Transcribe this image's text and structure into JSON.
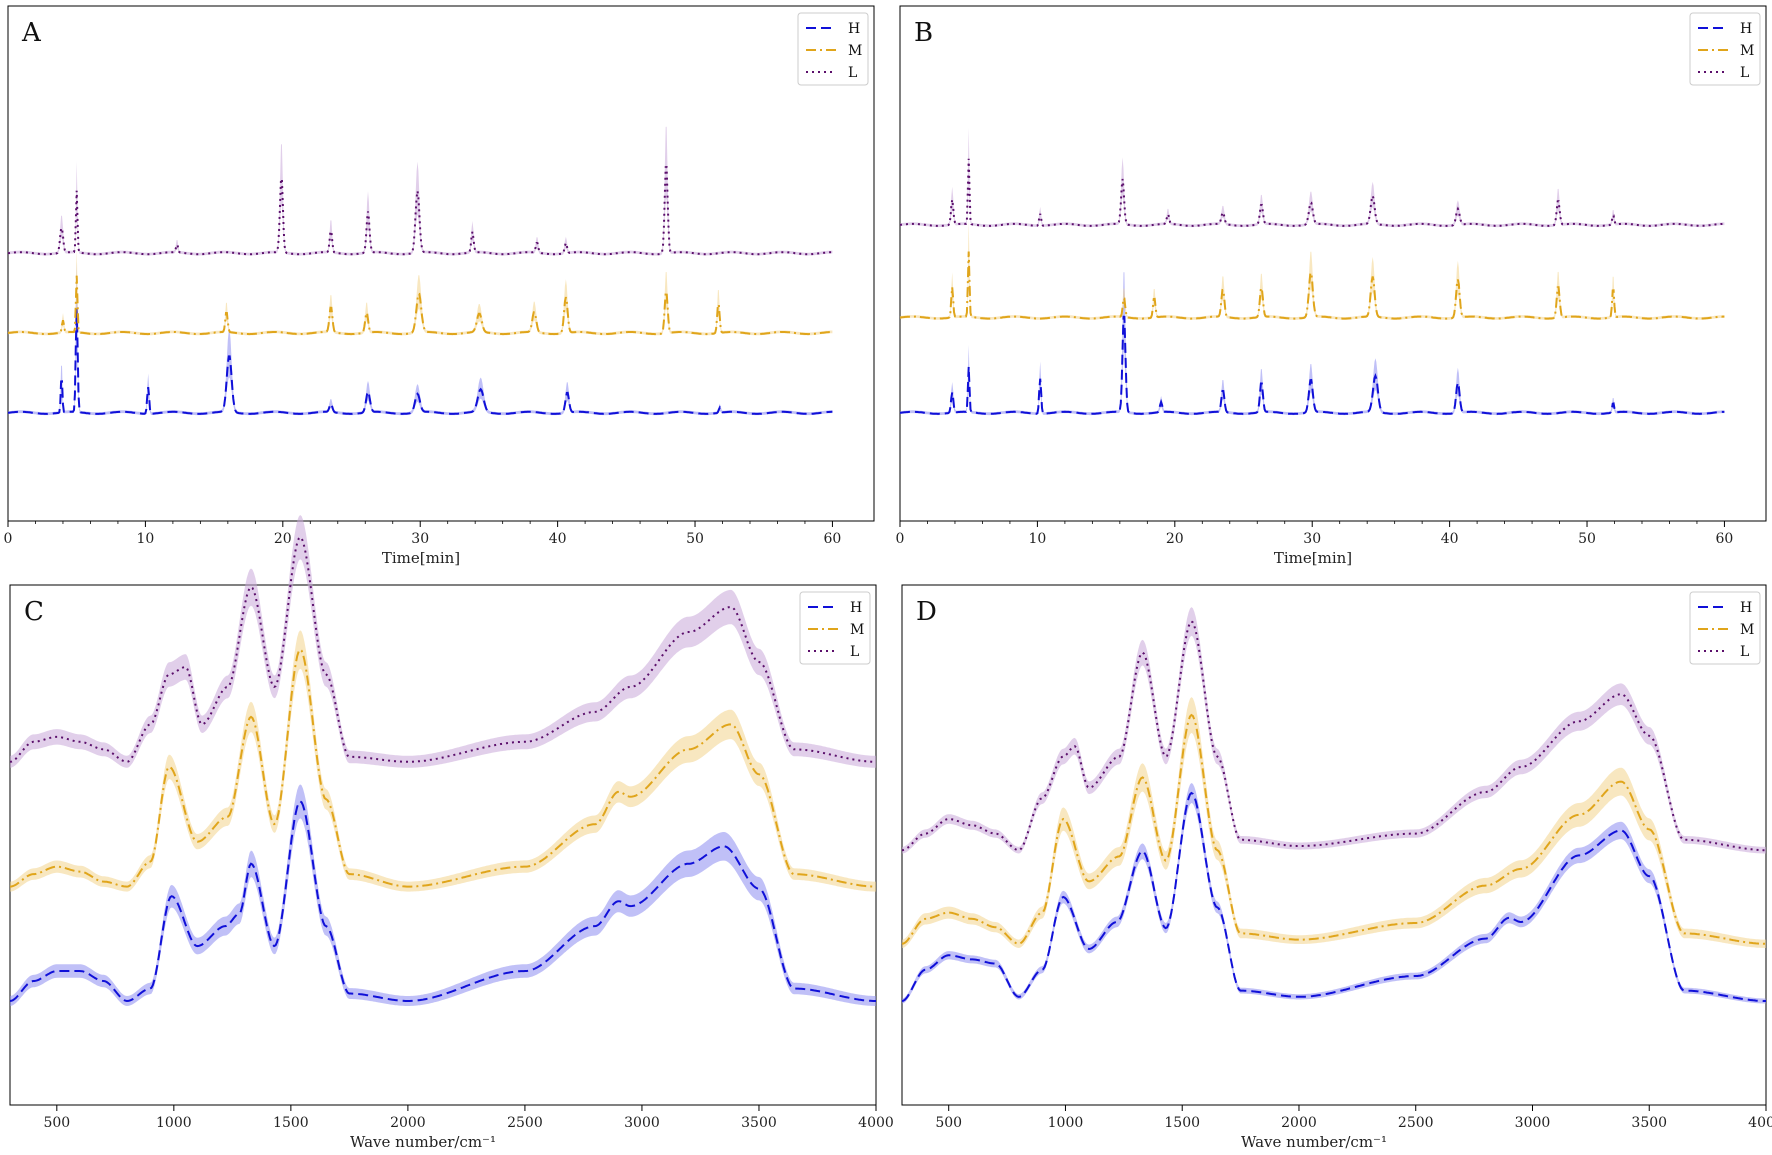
{
  "chart_data": [
    {
      "panel": "A",
      "type": "line",
      "xlabel": "Time[min]",
      "ylabel": "",
      "xlim": [
        0,
        60
      ],
      "xticks": [
        "0",
        "10",
        "20",
        "30",
        "40",
        "50",
        "60"
      ],
      "yticks": [],
      "legend": {
        "placement": "top-right",
        "entries": [
          "H",
          "M",
          "L"
        ]
      },
      "kind": "chrom",
      "series": [
        {
          "name": "H",
          "color": "#1010d8",
          "fill": "#8c8cf0",
          "dash": "dashed",
          "peaks": [
            [
              3.9,
              0.36,
              0.08
            ],
            [
              5.0,
              1.0,
              0.1
            ],
            [
              10.2,
              0.26,
              0.1
            ],
            [
              16.1,
              0.55,
              0.25
            ],
            [
              23.5,
              0.08,
              0.15
            ],
            [
              26.2,
              0.2,
              0.2
            ],
            [
              29.8,
              0.18,
              0.25
            ],
            [
              34.4,
              0.22,
              0.3
            ],
            [
              40.7,
              0.2,
              0.18
            ],
            [
              51.8,
              0.05,
              0.1
            ]
          ]
        },
        {
          "name": "M",
          "color": "#e0a51b",
          "fill": "#f2d48c",
          "dash": "dashdot",
          "peaks": [
            [
              4.0,
              0.12,
              0.1
            ],
            [
              5.0,
              0.55,
              0.08
            ],
            [
              15.9,
              0.2,
              0.12
            ],
            [
              23.5,
              0.25,
              0.15
            ],
            [
              26.1,
              0.2,
              0.15
            ],
            [
              29.9,
              0.38,
              0.25
            ],
            [
              34.3,
              0.18,
              0.25
            ],
            [
              38.3,
              0.2,
              0.2
            ],
            [
              40.6,
              0.35,
              0.18
            ],
            [
              47.9,
              0.42,
              0.15
            ],
            [
              51.7,
              0.3,
              0.12
            ]
          ]
        },
        {
          "name": "L",
          "color": "#5b0f6b",
          "fill": "#c8a8d8",
          "dash": "dotted",
          "peaks": [
            [
              3.9,
              0.25,
              0.15
            ],
            [
              5.0,
              0.6,
              0.08
            ],
            [
              12.3,
              0.08,
              0.1
            ],
            [
              19.9,
              0.75,
              0.15
            ],
            [
              23.5,
              0.22,
              0.12
            ],
            [
              26.2,
              0.4,
              0.15
            ],
            [
              29.8,
              0.6,
              0.2
            ],
            [
              33.8,
              0.2,
              0.12
            ],
            [
              38.5,
              0.1,
              0.12
            ],
            [
              40.6,
              0.1,
              0.12
            ],
            [
              47.9,
              0.88,
              0.15
            ]
          ]
        }
      ]
    },
    {
      "panel": "B",
      "type": "line",
      "xlabel": "Time[min]",
      "ylabel": "",
      "xlim": [
        0,
        60
      ],
      "xticks": [
        "0",
        "10",
        "20",
        "30",
        "40",
        "50",
        "60"
      ],
      "yticks": [],
      "legend": {
        "placement": "top-right",
        "entries": [
          "H",
          "M",
          "L"
        ]
      },
      "kind": "chrom",
      "series": [
        {
          "name": "H",
          "color": "#1010d8",
          "fill": "#8c8cf0",
          "dash": "dashed",
          "peaks": [
            [
              3.8,
              0.2,
              0.12
            ],
            [
              5.0,
              0.45,
              0.08
            ],
            [
              10.2,
              0.35,
              0.1
            ],
            [
              16.3,
              1.0,
              0.15
            ],
            [
              19.0,
              0.1,
              0.12
            ],
            [
              23.5,
              0.22,
              0.15
            ],
            [
              26.3,
              0.3,
              0.15
            ],
            [
              29.9,
              0.33,
              0.2
            ],
            [
              34.6,
              0.36,
              0.25
            ],
            [
              40.6,
              0.3,
              0.18
            ],
            [
              51.9,
              0.1,
              0.1
            ]
          ]
        },
        {
          "name": "M",
          "color": "#e0a51b",
          "fill": "#f2d48c",
          "dash": "dashdot",
          "peaks": [
            [
              3.8,
              0.3,
              0.1
            ],
            [
              5.0,
              0.65,
              0.08
            ],
            [
              16.3,
              0.2,
              0.12
            ],
            [
              18.5,
              0.2,
              0.12
            ],
            [
              23.5,
              0.28,
              0.15
            ],
            [
              26.3,
              0.3,
              0.15
            ],
            [
              29.9,
              0.45,
              0.2
            ],
            [
              34.4,
              0.4,
              0.2
            ],
            [
              40.6,
              0.38,
              0.18
            ],
            [
              47.9,
              0.32,
              0.15
            ],
            [
              51.9,
              0.3,
              0.1
            ]
          ]
        },
        {
          "name": "L",
          "color": "#5b0f6b",
          "fill": "#c8a8d8",
          "dash": "dotted",
          "peaks": [
            [
              3.8,
              0.25,
              0.12
            ],
            [
              5.0,
              0.65,
              0.08
            ],
            [
              10.2,
              0.12,
              0.1
            ],
            [
              16.2,
              0.45,
              0.15
            ],
            [
              19.5,
              0.1,
              0.12
            ],
            [
              23.5,
              0.12,
              0.15
            ],
            [
              26.3,
              0.2,
              0.15
            ],
            [
              29.9,
              0.22,
              0.2
            ],
            [
              34.4,
              0.28,
              0.2
            ],
            [
              40.6,
              0.16,
              0.18
            ],
            [
              47.9,
              0.25,
              0.15
            ],
            [
              51.9,
              0.1,
              0.1
            ]
          ]
        }
      ]
    },
    {
      "panel": "C",
      "type": "line",
      "xlabel": "Wave number/cm⁻¹",
      "ylabel": "",
      "xlim": [
        300,
        4000
      ],
      "xticks": [
        "500",
        "1000",
        "1500",
        "2000",
        "2500",
        "3000",
        "3500",
        "4000"
      ],
      "yticks": [],
      "legend": {
        "placement": "top-right",
        "entries": [
          "H",
          "M",
          "L"
        ]
      },
      "kind": "ir",
      "series": [
        {
          "name": "H",
          "color": "#1010d8",
          "fill": "#8c8cf0",
          "dash": "dashed",
          "points": [
            [
              300,
              0.0
            ],
            [
              400,
              0.08
            ],
            [
              500,
              0.12
            ],
            [
              600,
              0.12
            ],
            [
              700,
              0.08
            ],
            [
              800,
              0.0
            ],
            [
              900,
              0.05
            ],
            [
              990,
              0.42
            ],
            [
              1100,
              0.22
            ],
            [
              1220,
              0.3
            ],
            [
              1280,
              0.35
            ],
            [
              1330,
              0.55
            ],
            [
              1430,
              0.22
            ],
            [
              1540,
              0.8
            ],
            [
              1650,
              0.3
            ],
            [
              1750,
              0.03
            ],
            [
              2000,
              0.0
            ],
            [
              2500,
              0.12
            ],
            [
              2800,
              0.3
            ],
            [
              2900,
              0.4
            ],
            [
              2950,
              0.38
            ],
            [
              3200,
              0.55
            ],
            [
              3350,
              0.62
            ],
            [
              3500,
              0.45
            ],
            [
              3650,
              0.05
            ],
            [
              4000,
              0.0
            ]
          ],
          "band": 0.05
        },
        {
          "name": "M",
          "color": "#e0a51b",
          "fill": "#f2d48c",
          "dash": "dashdot",
          "points": [
            [
              300,
              0.0
            ],
            [
              400,
              0.05
            ],
            [
              500,
              0.08
            ],
            [
              600,
              0.06
            ],
            [
              700,
              0.02
            ],
            [
              800,
              0.0
            ],
            [
              900,
              0.1
            ],
            [
              980,
              0.48
            ],
            [
              1100,
              0.18
            ],
            [
              1230,
              0.28
            ],
            [
              1330,
              0.68
            ],
            [
              1430,
              0.25
            ],
            [
              1540,
              0.95
            ],
            [
              1650,
              0.35
            ],
            [
              1750,
              0.05
            ],
            [
              2000,
              0.0
            ],
            [
              2500,
              0.08
            ],
            [
              2800,
              0.25
            ],
            [
              2900,
              0.38
            ],
            [
              2950,
              0.36
            ],
            [
              3200,
              0.55
            ],
            [
              3380,
              0.65
            ],
            [
              3500,
              0.45
            ],
            [
              3650,
              0.05
            ],
            [
              4000,
              0.0
            ]
          ],
          "band": 0.05
        },
        {
          "name": "L",
          "color": "#5b0f6b",
          "fill": "#c8a8d8",
          "dash": "dotted",
          "points": [
            [
              300,
              0.0
            ],
            [
              400,
              0.08
            ],
            [
              500,
              0.1
            ],
            [
              600,
              0.08
            ],
            [
              700,
              0.05
            ],
            [
              800,
              0.0
            ],
            [
              900,
              0.15
            ],
            [
              980,
              0.35
            ],
            [
              1050,
              0.38
            ],
            [
              1120,
              0.15
            ],
            [
              1230,
              0.3
            ],
            [
              1330,
              0.7
            ],
            [
              1430,
              0.3
            ],
            [
              1540,
              0.9
            ],
            [
              1650,
              0.35
            ],
            [
              1750,
              0.02
            ],
            [
              2000,
              0.0
            ],
            [
              2500,
              0.08
            ],
            [
              2800,
              0.2
            ],
            [
              2950,
              0.3
            ],
            [
              3200,
              0.52
            ],
            [
              3380,
              0.62
            ],
            [
              3500,
              0.4
            ],
            [
              3650,
              0.05
            ],
            [
              4000,
              0.0
            ]
          ],
          "band": 0.06
        }
      ]
    },
    {
      "panel": "D",
      "type": "line",
      "xlabel": "Wave number/cm⁻¹",
      "ylabel": "",
      "xlim": [
        300,
        4000
      ],
      "xticks": [
        "500",
        "1000",
        "1500",
        "2000",
        "2500",
        "3000",
        "3500",
        "4000"
      ],
      "yticks": [],
      "legend": {
        "placement": "top-right",
        "entries": [
          "H",
          "M",
          "L"
        ]
      },
      "kind": "ir",
      "series": [
        {
          "name": "H",
          "color": "#1010d8",
          "fill": "#8c8cf0",
          "dash": "dashed",
          "points": [
            [
              300,
              0.0
            ],
            [
              400,
              0.15
            ],
            [
              500,
              0.22
            ],
            [
              600,
              0.2
            ],
            [
              700,
              0.18
            ],
            [
              800,
              0.02
            ],
            [
              900,
              0.15
            ],
            [
              990,
              0.5
            ],
            [
              1100,
              0.25
            ],
            [
              1220,
              0.38
            ],
            [
              1330,
              0.72
            ],
            [
              1430,
              0.35
            ],
            [
              1540,
              1.0
            ],
            [
              1650,
              0.45
            ],
            [
              1750,
              0.05
            ],
            [
              2000,
              0.02
            ],
            [
              2500,
              0.12
            ],
            [
              2800,
              0.3
            ],
            [
              2900,
              0.4
            ],
            [
              2950,
              0.38
            ],
            [
              3200,
              0.7
            ],
            [
              3380,
              0.82
            ],
            [
              3500,
              0.6
            ],
            [
              3650,
              0.05
            ],
            [
              4000,
              0.0
            ]
          ],
          "band": 0.03
        },
        {
          "name": "M",
          "color": "#e0a51b",
          "fill": "#f2d48c",
          "dash": "dashdot",
          "points": [
            [
              300,
              0.0
            ],
            [
              400,
              0.12
            ],
            [
              500,
              0.15
            ],
            [
              600,
              0.12
            ],
            [
              700,
              0.08
            ],
            [
              800,
              0.0
            ],
            [
              900,
              0.15
            ],
            [
              990,
              0.6
            ],
            [
              1100,
              0.3
            ],
            [
              1230,
              0.42
            ],
            [
              1330,
              0.8
            ],
            [
              1430,
              0.4
            ],
            [
              1540,
              1.1
            ],
            [
              1650,
              0.45
            ],
            [
              1750,
              0.05
            ],
            [
              2000,
              0.02
            ],
            [
              2500,
              0.1
            ],
            [
              2800,
              0.28
            ],
            [
              2950,
              0.36
            ],
            [
              3200,
              0.62
            ],
            [
              3380,
              0.78
            ],
            [
              3500,
              0.55
            ],
            [
              3650,
              0.05
            ],
            [
              4000,
              0.0
            ]
          ],
          "band": 0.05
        },
        {
          "name": "L",
          "color": "#5b0f6b",
          "fill": "#c8a8d8",
          "dash": "dotted",
          "points": [
            [
              300,
              0.0
            ],
            [
              400,
              0.08
            ],
            [
              500,
              0.15
            ],
            [
              600,
              0.12
            ],
            [
              700,
              0.08
            ],
            [
              800,
              0.0
            ],
            [
              900,
              0.25
            ],
            [
              990,
              0.45
            ],
            [
              1040,
              0.5
            ],
            [
              1100,
              0.3
            ],
            [
              1230,
              0.45
            ],
            [
              1330,
              0.95
            ],
            [
              1430,
              0.45
            ],
            [
              1540,
              1.1
            ],
            [
              1650,
              0.45
            ],
            [
              1750,
              0.05
            ],
            [
              2000,
              0.02
            ],
            [
              2500,
              0.08
            ],
            [
              2800,
              0.28
            ],
            [
              2950,
              0.4
            ],
            [
              3200,
              0.62
            ],
            [
              3380,
              0.75
            ],
            [
              3500,
              0.55
            ],
            [
              3650,
              0.05
            ],
            [
              4000,
              0.0
            ]
          ],
          "band": 0.04
        }
      ]
    }
  ]
}
